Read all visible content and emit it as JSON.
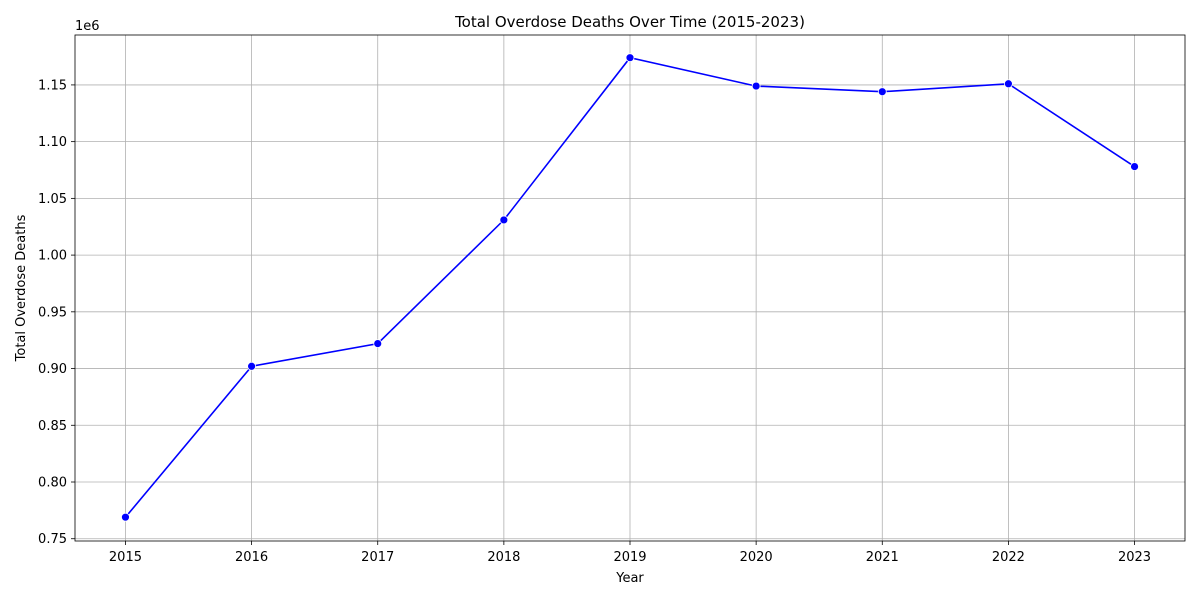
{
  "chart_data": {
    "type": "line",
    "title": "Total Overdose Deaths Over Time (2015-2023)",
    "xlabel": "Year",
    "ylabel": "Total Overdose Deaths",
    "y_offset_text": "1e6",
    "x": [
      2015,
      2016,
      2017,
      2018,
      2019,
      2020,
      2021,
      2022,
      2023
    ],
    "x_tick_labels": [
      "2015",
      "2016",
      "2017",
      "2018",
      "2019",
      "2020",
      "2021",
      "2022",
      "2023"
    ],
    "y_ticks": [
      0.75,
      0.8,
      0.85,
      0.9,
      0.95,
      1.0,
      1.05,
      1.1,
      1.15
    ],
    "y_tick_labels": [
      "0.75",
      "0.80",
      "0.85",
      "0.90",
      "0.95",
      "1.00",
      "1.05",
      "1.10",
      "1.15"
    ],
    "series": [
      {
        "values": [
          769000,
          902000,
          922000,
          1031000,
          1174000,
          1149000,
          1144000,
          1151000,
          1078000
        ],
        "color": "#0000ff",
        "marker": "circle"
      }
    ],
    "xlim": [
      2014.6,
      2023.4
    ],
    "ylim": [
      0.748,
      1.194
    ],
    "grid": true,
    "legend": "none"
  }
}
